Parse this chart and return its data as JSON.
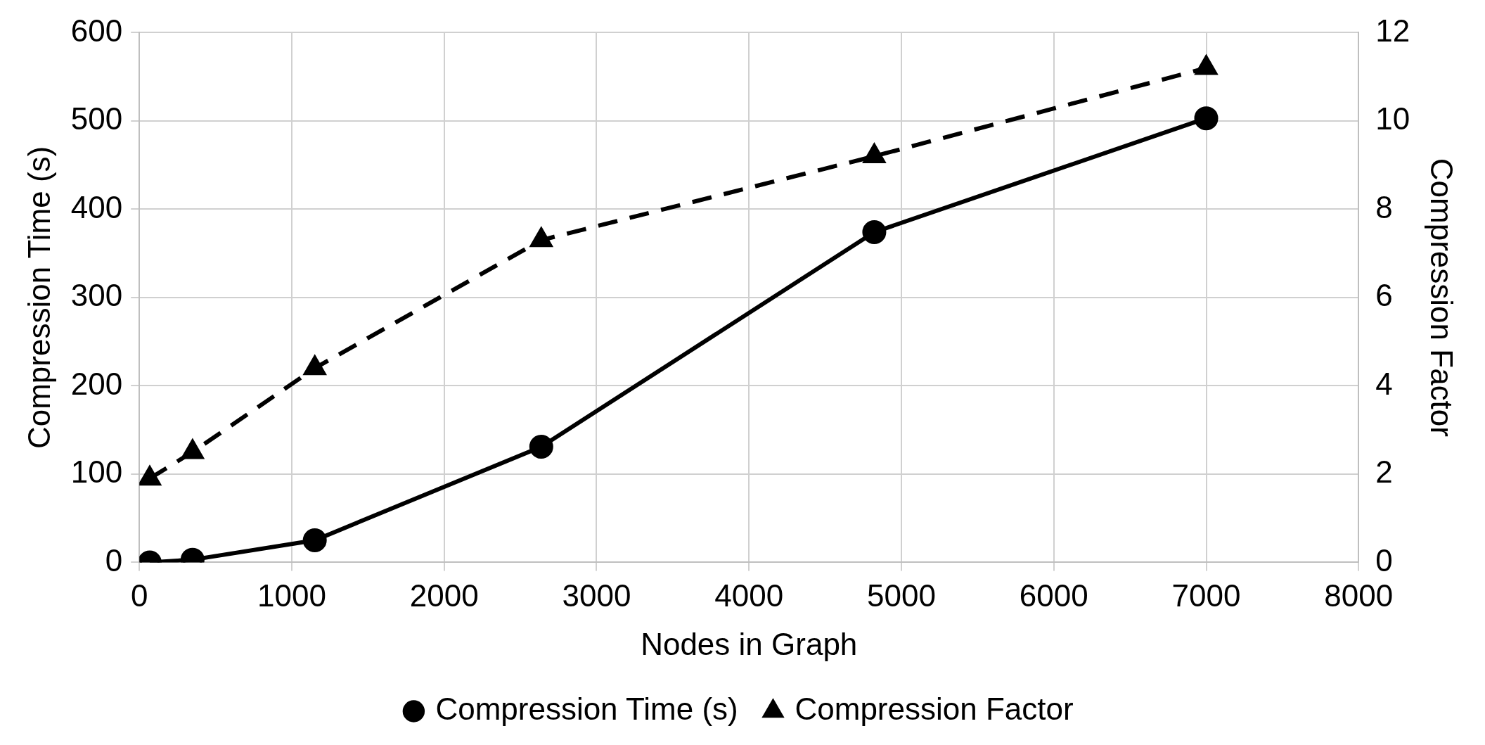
{
  "chart_data": {
    "type": "line",
    "xlabel": "Nodes in Graph",
    "ylabel": "Compression Time (s)",
    "y2label": "Compression Factor",
    "x": [
      68,
      349,
      1151,
      2637,
      4822,
      7000
    ],
    "series": [
      {
        "name": "Compression Time (s)",
        "color": "#000000",
        "values": [
          0,
          3,
          25,
          131,
          374,
          503
        ],
        "marker": "circle",
        "line_style": "solid"
      },
      {
        "name": "Compression Factor",
        "color": "#000000",
        "values": [
          1.9,
          2.5,
          4.4,
          7.3,
          9.2,
          11.2
        ],
        "axis": "y2",
        "marker": "triangle",
        "line_style": "dashed"
      }
    ],
    "xlim": [
      0,
      8000
    ],
    "xticks": [
      0,
      1000,
      2000,
      3000,
      4000,
      5000,
      6000,
      7000,
      8000
    ],
    "ylim": [
      0,
      600
    ],
    "yticks": [
      0,
      100,
      200,
      300,
      400,
      500,
      600
    ],
    "y2lim": [
      0,
      12
    ],
    "y2ticks": [
      0,
      2,
      4,
      6,
      8,
      10,
      12
    ],
    "grid": true,
    "legend": "bottom"
  }
}
